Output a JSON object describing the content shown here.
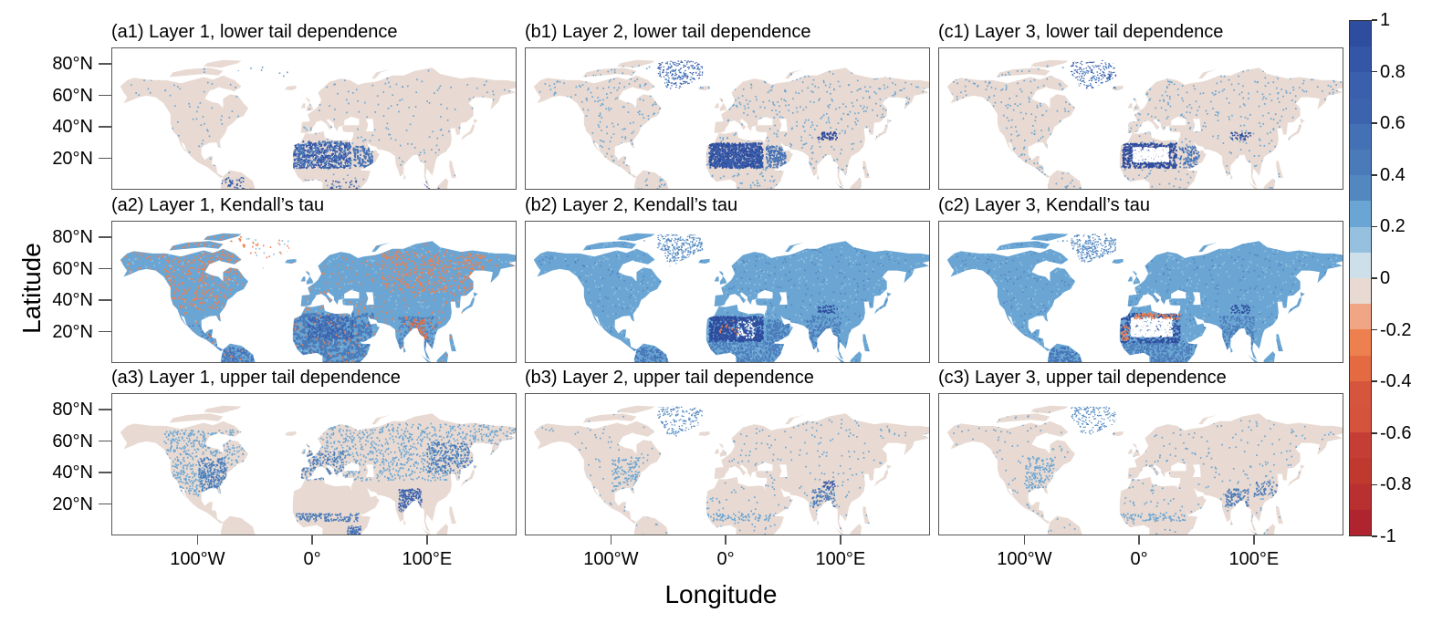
{
  "figure": {
    "panels": [
      {
        "id": "a1",
        "title": "(a1) Layer 1, lower tail dependence"
      },
      {
        "id": "b1",
        "title": "(b1) Layer 2, lower tail dependence"
      },
      {
        "id": "c1",
        "title": "(c1) Layer 3, lower tail dependence"
      },
      {
        "id": "a2",
        "title": "(a2) Layer 1, Kendall’s tau"
      },
      {
        "id": "b2",
        "title": "(b2) Layer 2, Kendall’s tau"
      },
      {
        "id": "c2",
        "title": "(c2) Layer 3, Kendall’s tau"
      },
      {
        "id": "a3",
        "title": "(a3) Layer 1, upper tail dependence"
      },
      {
        "id": "b3",
        "title": "(b3) Layer 2, upper tail dependence"
      },
      {
        "id": "c3",
        "title": "(c3) Layer 3, upper tail dependence"
      }
    ],
    "y_axis": {
      "label": "Latitude",
      "ticks": [
        {
          "value": 80,
          "label": "80°N"
        },
        {
          "value": 60,
          "label": "60°N"
        },
        {
          "value": 40,
          "label": "40°N"
        },
        {
          "value": 20,
          "label": "20°N"
        }
      ],
      "range": [
        0,
        90.5
      ]
    },
    "x_axis": {
      "label": "Longitude",
      "ticks": [
        {
          "value": -100,
          "label": "100°W"
        },
        {
          "value": 0,
          "label": "0°"
        },
        {
          "value": 100,
          "label": "100°E"
        }
      ],
      "range": [
        -175,
        178
      ]
    },
    "colorbar": {
      "range": [
        -1,
        1
      ],
      "ticks": [
        {
          "value": 1,
          "label": "1"
        },
        {
          "value": 0.8,
          "label": "0.8"
        },
        {
          "value": 0.6,
          "label": "0.6"
        },
        {
          "value": 0.4,
          "label": "0.4"
        },
        {
          "value": 0.2,
          "label": "0.2"
        },
        {
          "value": 0,
          "label": "0"
        },
        {
          "value": -0.2,
          "label": "-0.2"
        },
        {
          "value": -0.4,
          "label": "-0.4"
        },
        {
          "value": -0.6,
          "label": "-0.6"
        },
        {
          "value": -0.8,
          "label": "-0.8"
        },
        {
          "value": -1,
          "label": "-1"
        }
      ],
      "colors_top_to_bottom": [
        "#2f4d9e",
        "#3456a6",
        "#3a60ad",
        "#3c63ad",
        "#4471b5",
        "#4a7ab8",
        "#5387c0",
        "#6aa5d3",
        "#95c1df",
        "#cde0ea",
        "#e8dad2",
        "#f0a684",
        "#ee8050",
        "#e46a42",
        "#d6553d",
        "#d5533c",
        "#c53e36",
        "#c0392f",
        "#b8302f",
        "#b0242f"
      ]
    },
    "neutral_color": "#e8dad2"
  }
}
